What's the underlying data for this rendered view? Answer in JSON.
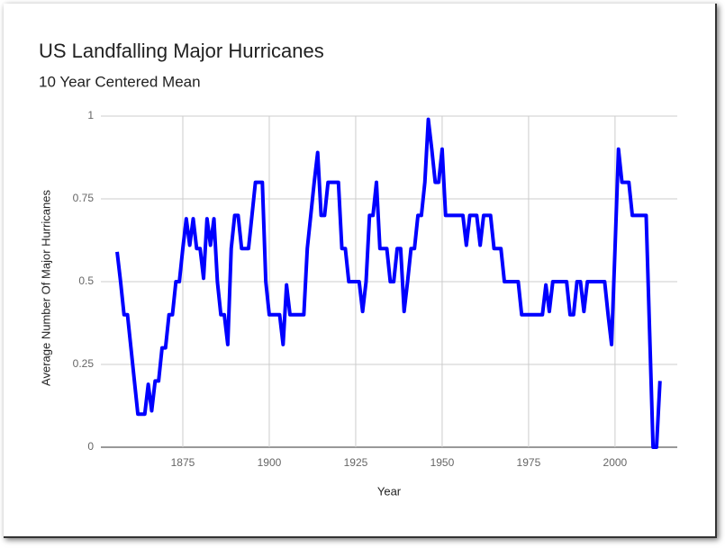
{
  "chart_data": {
    "type": "line",
    "title": "US Landfalling Major Hurricanes",
    "subtitle": "10 Year Centered Mean",
    "x_label": "Year",
    "y_label": "Average Number Of Major Hurricanes",
    "x": [
      1856,
      1857,
      1858,
      1859,
      1860,
      1861,
      1862,
      1863,
      1864,
      1865,
      1866,
      1867,
      1868,
      1869,
      1870,
      1871,
      1872,
      1873,
      1874,
      1875,
      1876,
      1877,
      1878,
      1879,
      1880,
      1881,
      1882,
      1883,
      1884,
      1885,
      1886,
      1887,
      1888,
      1889,
      1890,
      1891,
      1892,
      1893,
      1894,
      1895,
      1896,
      1897,
      1898,
      1899,
      1900,
      1901,
      1902,
      1903,
      1904,
      1905,
      1906,
      1907,
      1908,
      1909,
      1910,
      1911,
      1912,
      1913,
      1914,
      1915,
      1916,
      1917,
      1918,
      1919,
      1920,
      1921,
      1922,
      1923,
      1924,
      1925,
      1926,
      1927,
      1928,
      1929,
      1930,
      1931,
      1932,
      1933,
      1934,
      1935,
      1936,
      1937,
      1938,
      1939,
      1940,
      1941,
      1942,
      1943,
      1944,
      1945,
      1946,
      1947,
      1948,
      1949,
      1950,
      1951,
      1952,
      1953,
      1954,
      1955,
      1956,
      1957,
      1958,
      1959,
      1960,
      1961,
      1962,
      1963,
      1964,
      1965,
      1966,
      1967,
      1968,
      1969,
      1970,
      1971,
      1972,
      1973,
      1974,
      1975,
      1976,
      1977,
      1978,
      1979,
      1980,
      1981,
      1982,
      1983,
      1984,
      1985,
      1986,
      1987,
      1988,
      1989,
      1990,
      1991,
      1992,
      1993,
      1994,
      1995,
      1996,
      1997,
      1998,
      1999,
      2000,
      2001,
      2002,
      2003,
      2004,
      2005,
      2006,
      2007,
      2008,
      2009,
      2010,
      2011,
      2012,
      2013
    ],
    "series": [
      {
        "name": "Average Number Of Major Hurricanes",
        "color": "#0000ff",
        "values": [
          0.59,
          0.5,
          0.4,
          0.4,
          0.3,
          0.2,
          0.1,
          0.1,
          0.1,
          0.19,
          0.11,
          0.2,
          0.2,
          0.3,
          0.3,
          0.4,
          0.4,
          0.5,
          0.5,
          0.6,
          0.69,
          0.61,
          0.69,
          0.6,
          0.6,
          0.51,
          0.69,
          0.61,
          0.69,
          0.5,
          0.4,
          0.4,
          0.31,
          0.6,
          0.7,
          0.7,
          0.6,
          0.6,
          0.6,
          0.7,
          0.8,
          0.8,
          0.8,
          0.5,
          0.4,
          0.4,
          0.4,
          0.4,
          0.31,
          0.49,
          0.4,
          0.4,
          0.4,
          0.4,
          0.4,
          0.6,
          0.7,
          0.8,
          0.89,
          0.7,
          0.7,
          0.8,
          0.8,
          0.8,
          0.8,
          0.6,
          0.6,
          0.5,
          0.5,
          0.5,
          0.5,
          0.41,
          0.5,
          0.7,
          0.7,
          0.8,
          0.6,
          0.6,
          0.6,
          0.5,
          0.5,
          0.6,
          0.6,
          0.41,
          0.5,
          0.6,
          0.6,
          0.7,
          0.7,
          0.8,
          0.99,
          0.9,
          0.8,
          0.8,
          0.9,
          0.7,
          0.7,
          0.7,
          0.7,
          0.7,
          0.7,
          0.61,
          0.7,
          0.7,
          0.7,
          0.61,
          0.7,
          0.7,
          0.7,
          0.6,
          0.6,
          0.6,
          0.5,
          0.5,
          0.5,
          0.5,
          0.5,
          0.4,
          0.4,
          0.4,
          0.4,
          0.4,
          0.4,
          0.4,
          0.49,
          0.41,
          0.5,
          0.5,
          0.5,
          0.5,
          0.5,
          0.4,
          0.4,
          0.5,
          0.5,
          0.41,
          0.5,
          0.5,
          0.5,
          0.5,
          0.5,
          0.5,
          0.4,
          0.31,
          0.6,
          0.9,
          0.8,
          0.8,
          0.8,
          0.7,
          0.7,
          0.7,
          0.7,
          0.7,
          0.35,
          0,
          0,
          0.2
        ]
      }
    ],
    "xlim": [
      1851.3,
      2018
    ],
    "xticks": [
      1875,
      1900,
      1925,
      1950,
      1975,
      2000
    ],
    "ylim": [
      0,
      1
    ],
    "yticks": [
      0,
      0.25,
      0.5,
      0.75,
      1
    ],
    "grid": true
  }
}
